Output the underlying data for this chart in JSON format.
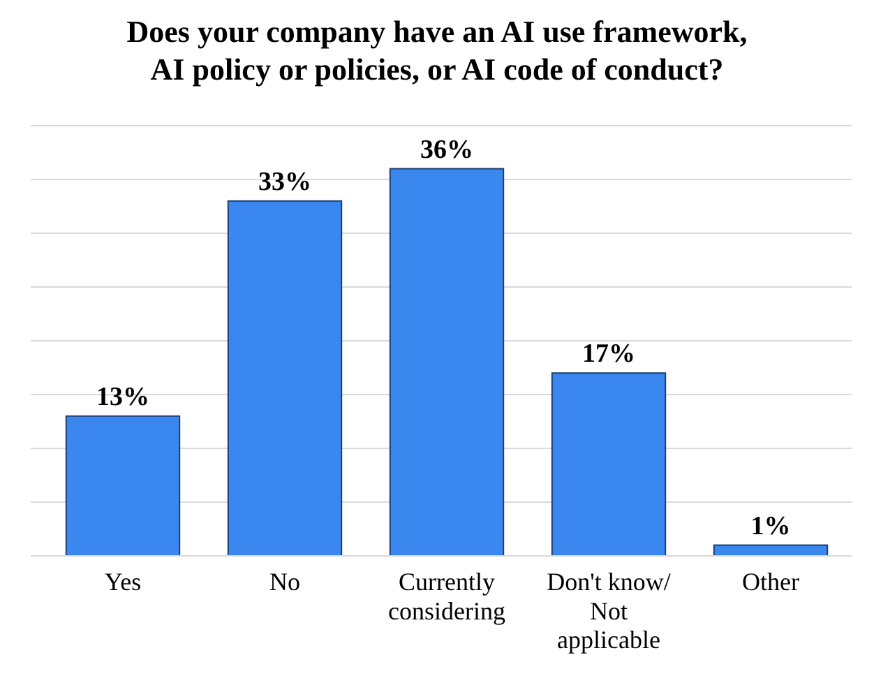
{
  "chart_data": {
    "type": "bar",
    "title": "Does your company have an AI use framework,\nAI policy or policies, or AI code of conduct?",
    "categories": [
      "Yes",
      "No",
      "Currently considering",
      "Don't know/Not applicable",
      "Other"
    ],
    "values": [
      13,
      33,
      36,
      17,
      1
    ],
    "color": "#3b87f0",
    "value_labels": [
      "13%",
      "33%",
      "36%",
      "17%",
      "1%"
    ],
    "ylim": [
      0,
      40
    ],
    "yticks": [
      {
        "value": 0,
        "label": null
      },
      {
        "value": 5,
        "label": null
      },
      {
        "value": 10,
        "label": null
      },
      {
        "value": 15,
        "label": null
      },
      {
        "value": 20,
        "label": null
      },
      {
        "value": 25,
        "label": null
      },
      {
        "value": 30,
        "label": null
      },
      {
        "value": 35,
        "label": null
      },
      {
        "value": 40,
        "label": null
      }
    ],
    "grid": "y",
    "tick_labels": "x"
  }
}
